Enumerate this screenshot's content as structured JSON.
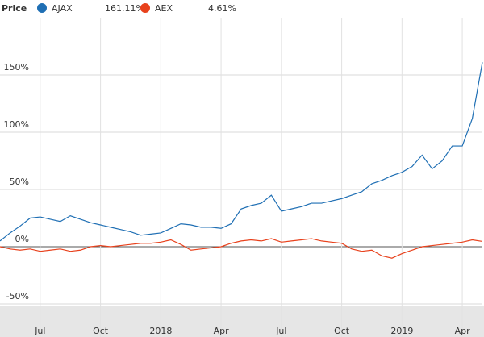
{
  "chart_data": {
    "type": "line",
    "legend_title": "Price",
    "categories": [
      null,
      null,
      null,
      null,
      "Jul",
      null,
      null,
      null,
      null,
      null,
      "Oct",
      null,
      null,
      null,
      null,
      null,
      "2018",
      null,
      null,
      null,
      null,
      null,
      "Apr",
      null,
      null,
      null,
      null,
      null,
      "Jul",
      null,
      null,
      null,
      null,
      null,
      "Oct",
      null,
      null,
      null,
      null,
      null,
      "2019",
      null,
      null,
      null,
      null,
      null,
      "Apr",
      null,
      null
    ],
    "series": [
      {
        "name": "AJAX",
        "color": "#1f6fb4",
        "value_label": "161.11%",
        "values": [
          5,
          12,
          18,
          25,
          26,
          24,
          22,
          27,
          24,
          21,
          19,
          17,
          15,
          13,
          10,
          11,
          12,
          16,
          20,
          19,
          17,
          17,
          16,
          20,
          33,
          36,
          38,
          45,
          31,
          33,
          35,
          38,
          38,
          40,
          42,
          45,
          48,
          55,
          58,
          62,
          65,
          70,
          80,
          68,
          75,
          88,
          88,
          112,
          161.11
        ]
      },
      {
        "name": "AEX",
        "color": "#e8411c",
        "value_label": "4.61%",
        "values": [
          0,
          -2,
          -3,
          -2,
          -4,
          -3,
          -2,
          -4,
          -3,
          0,
          1,
          0,
          1,
          2,
          3,
          3,
          4,
          6,
          2,
          -3,
          -2,
          -1,
          0,
          3,
          5,
          6,
          5,
          7,
          4,
          5,
          6,
          7,
          5,
          4,
          3,
          -2,
          -4,
          -3,
          -8,
          -10,
          -6,
          -3,
          0,
          1,
          2,
          3,
          4,
          6,
          4.61
        ]
      }
    ],
    "ylim": [
      -50,
      200
    ],
    "yticks": [
      {
        "value": -50,
        "label": "-50%"
      },
      {
        "value": 0,
        "label": "0%"
      },
      {
        "value": 50,
        "label": "50%"
      },
      {
        "value": 100,
        "label": "100%"
      },
      {
        "value": 150,
        "label": "150%"
      }
    ],
    "grid": true
  }
}
